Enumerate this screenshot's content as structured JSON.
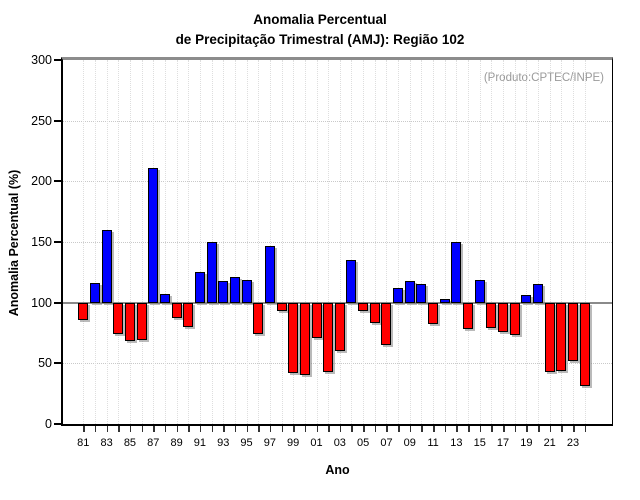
{
  "title": {
    "line1": "Anomalia Percentual",
    "line2": "de Precipitação Trimestral (AMJ): Região 102"
  },
  "annotation": "(Produto:CPTEC/INPE)",
  "chart_data": {
    "type": "bar",
    "title": "Anomalia Percentual de Precipitação Trimestral (AMJ): Região 102",
    "xlabel": "Ano",
    "ylabel": "Anomalia Percentual (%)",
    "ylim": [
      0,
      300
    ],
    "yticks": [
      0,
      50,
      100,
      150,
      200,
      250,
      300
    ],
    "baseline": 100,
    "grid": "dotted",
    "legend": "none",
    "colors": {
      "above_baseline": "#0000FF",
      "below_baseline": "#FF0000",
      "baseline_line": "#8A8A8A",
      "bar_border": "#000000"
    },
    "categories": [
      "81",
      "82",
      "83",
      "84",
      "85",
      "86",
      "87",
      "88",
      "89",
      "90",
      "91",
      "92",
      "93",
      "94",
      "95",
      "96",
      "97",
      "98",
      "99",
      "00",
      "01",
      "02",
      "03",
      "04",
      "05",
      "06",
      "07",
      "08",
      "09",
      "10",
      "11",
      "12",
      "13",
      "14",
      "15",
      "16",
      "17",
      "18",
      "19",
      "20",
      "21",
      "22",
      "23",
      "24"
    ],
    "values": [
      86,
      116,
      160,
      74,
      68,
      69,
      211,
      107,
      87,
      80,
      125,
      150,
      118,
      121,
      119,
      74,
      147,
      93,
      42,
      40,
      71,
      43,
      60,
      135,
      93,
      83,
      65,
      112,
      118,
      115,
      82,
      103,
      150,
      78,
      119,
      79,
      76,
      73,
      106,
      115,
      43,
      44,
      52,
      31
    ],
    "xtick_labels_shown": [
      "81",
      "83",
      "85",
      "87",
      "89",
      "91",
      "93",
      "95",
      "97",
      "99",
      "01",
      "03",
      "05",
      "07",
      "09",
      "11",
      "13",
      "15",
      "17",
      "19",
      "21",
      "23"
    ]
  }
}
